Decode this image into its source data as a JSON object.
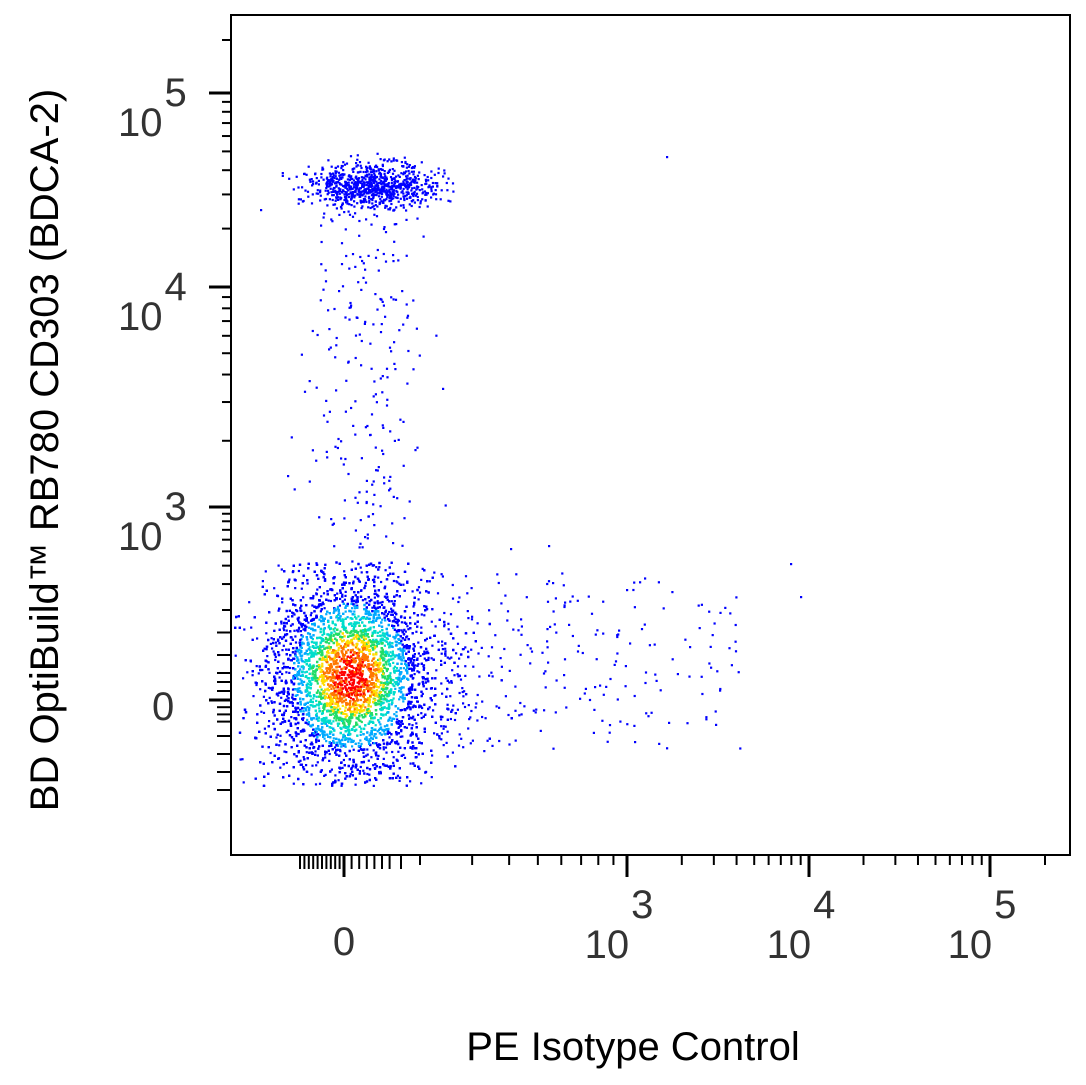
{
  "chart_data": {
    "type": "scatter",
    "title": "",
    "xlabel": "PE Isotype Control",
    "ylabel": "BD OptiBuild™ RB780 CD303 (BDCA-2)",
    "x_scale": "biexponential",
    "y_scale": "biexponential",
    "x_ticks": [
      {
        "value": 0,
        "base": "0",
        "exp": ""
      },
      {
        "value": 1000,
        "base": "10",
        "exp": "3"
      },
      {
        "value": 10000,
        "base": "10",
        "exp": "4"
      },
      {
        "value": 100000,
        "base": "10",
        "exp": "5"
      }
    ],
    "y_ticks": [
      {
        "value": 0,
        "base": "0",
        "exp": ""
      },
      {
        "value": 1000,
        "base": "10",
        "exp": "3"
      },
      {
        "value": 10000,
        "base": "10",
        "exp": "4"
      },
      {
        "value": 100000,
        "base": "10",
        "exp": "5"
      }
    ],
    "xlim": [
      -200,
      200000
    ],
    "ylim": [
      -250,
      200000
    ],
    "grid": false,
    "legend": "none",
    "color_scale": "density (blue → cyan → green → yellow → red)",
    "populations": [
      {
        "name": "",
        "center_x": 0,
        "center_y": 0,
        "count": "high",
        "description": "CD303-negative main cluster, peak density red at center"
      },
      {
        "name": "",
        "center_x": 0,
        "center_y": 50000,
        "count": "low",
        "description": "CD303+ plasmacytoid dendritic cells"
      },
      {
        "name": "",
        "center_x": 0,
        "center_y": 2000,
        "count": "sparse",
        "description": "bridge between clusters"
      },
      {
        "name": "",
        "center_x": 800,
        "center_y": 100,
        "count": "sparse",
        "description": "PE-positive scattered events"
      }
    ]
  },
  "colors": {
    "low_density": "#0000ff",
    "mid_low": "#00aaff",
    "mid": "#22dd66",
    "mid_high": "#ffdd00",
    "high_density": "#ff0000",
    "axis": "#000000",
    "text": "#333333"
  }
}
